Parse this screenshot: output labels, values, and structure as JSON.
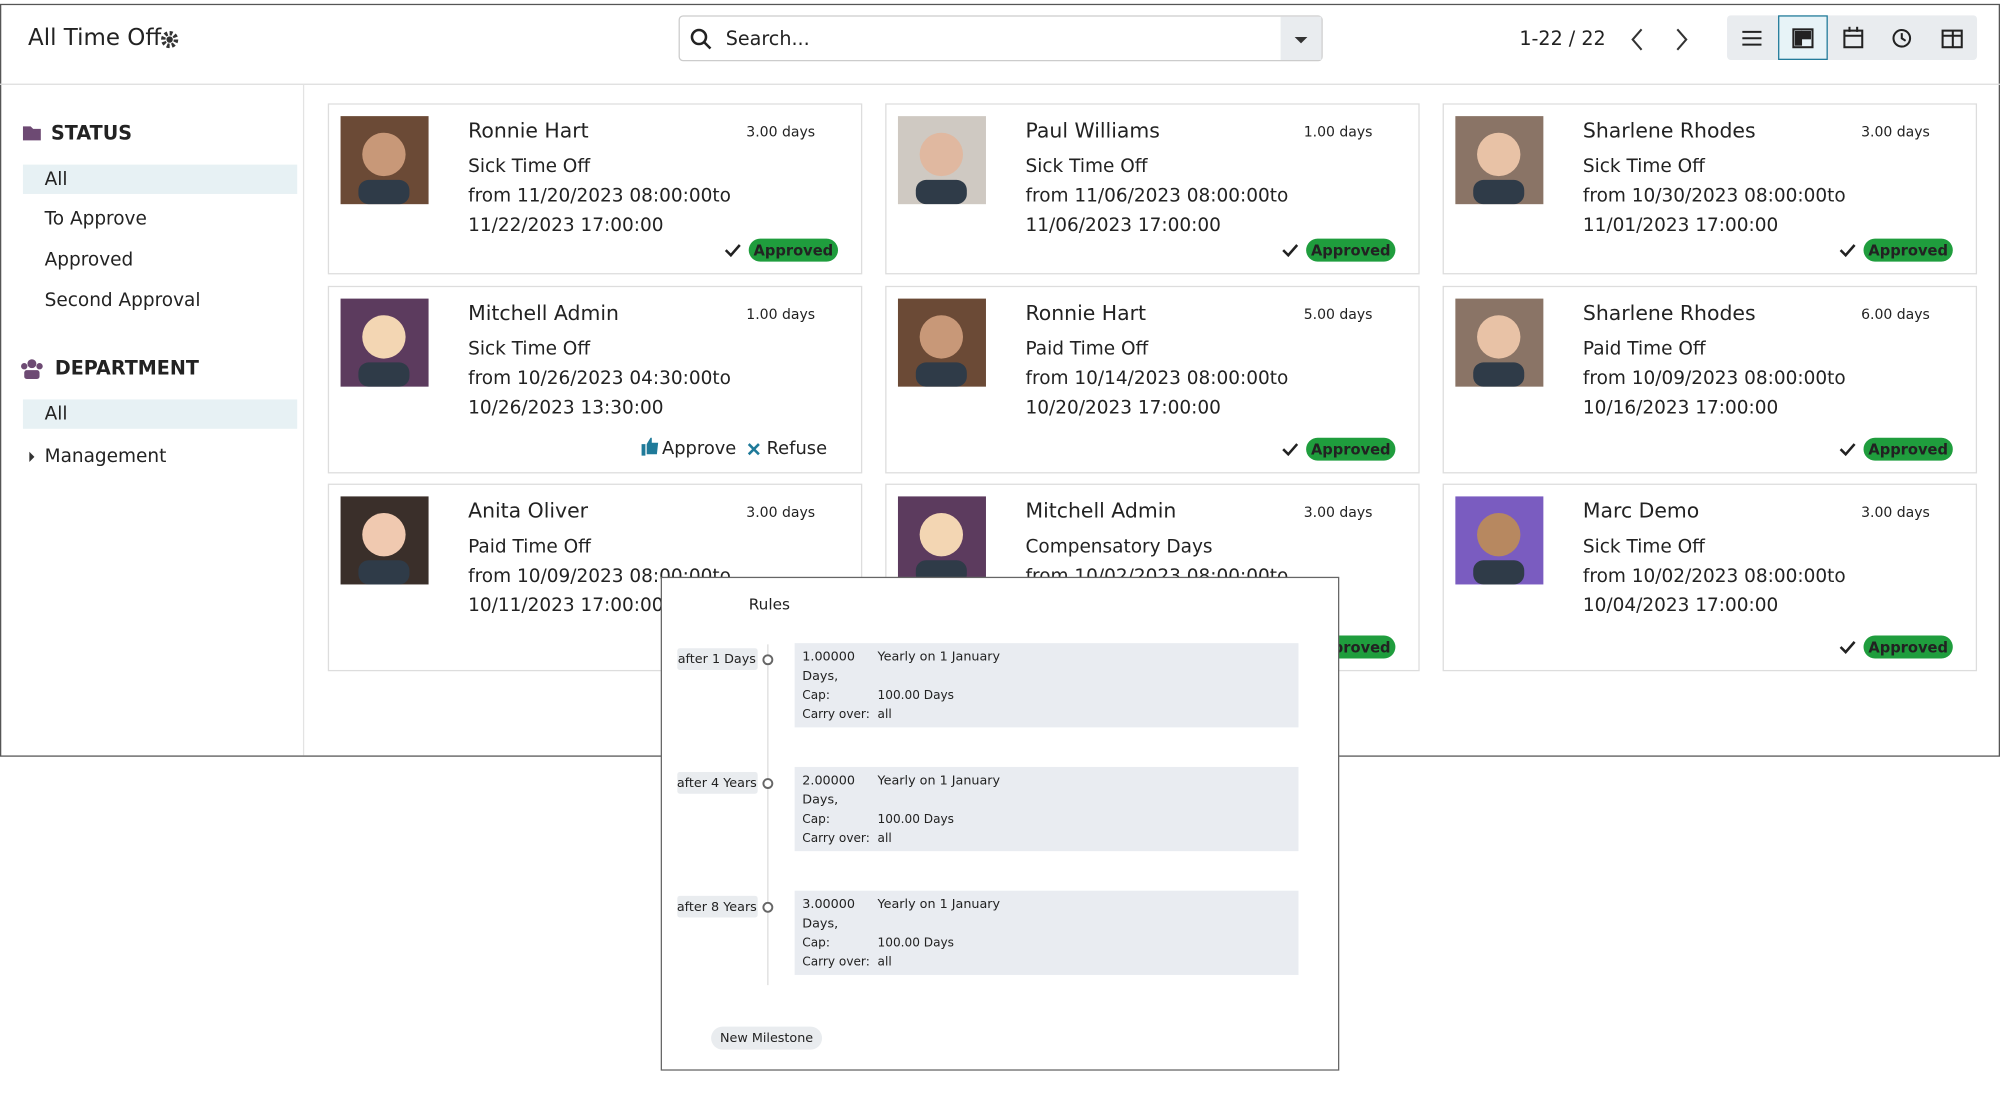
{
  "header": {
    "title": "All Time Off",
    "search_placeholder": "Search...",
    "pager": "1-22 / 22"
  },
  "sidebar": {
    "status_title": "STATUS",
    "status_items": [
      "All",
      "To Approve",
      "Approved",
      "Second Approval"
    ],
    "department_title": "DEPARTMENT",
    "department_items": [
      "All",
      "Management"
    ]
  },
  "cards": [
    {
      "name": "Ronnie Hart",
      "days": "3.00 days",
      "type": "Sick Time Off",
      "from": "from 11/20/2023 08:00:00to",
      "to": "11/22/2023 17:00:00",
      "status": "Approved"
    },
    {
      "name": "Paul Williams",
      "days": "1.00 days",
      "type": "Sick Time Off",
      "from": "from 11/06/2023 08:00:00to",
      "to": "11/06/2023 17:00:00",
      "status": "Approved"
    },
    {
      "name": "Sharlene Rhodes",
      "days": "3.00 days",
      "type": "Sick Time Off",
      "from": "from 10/30/2023 08:00:00to",
      "to": "11/01/2023 17:00:00",
      "status": "Approved"
    },
    {
      "name": "Mitchell Admin",
      "days": "1.00 days",
      "type": "Sick Time Off",
      "from": "from 10/26/2023 04:30:00to",
      "to": "10/26/2023 13:30:00",
      "actions": [
        "Approve",
        "Refuse"
      ]
    },
    {
      "name": "Ronnie Hart",
      "days": "5.00 days",
      "type": "Paid Time Off",
      "from": "from 10/14/2023 08:00:00to",
      "to": "10/20/2023 17:00:00",
      "status": "Approved"
    },
    {
      "name": "Sharlene Rhodes",
      "days": "6.00 days",
      "type": "Paid Time Off",
      "from": "from 10/09/2023 08:00:00to",
      "to": "10/16/2023 17:00:00",
      "status": "Approved"
    },
    {
      "name": "Anita Oliver",
      "days": "3.00 days",
      "type": "Paid Time Off",
      "from": "from 10/09/2023 08:00:00to",
      "to": "10/11/2023 17:00:00"
    },
    {
      "name": "Mitchell Admin",
      "days": "3.00 days",
      "type": "Compensatory Days",
      "from": "from 10/02/2023 08:00:00to",
      "status": "Approved"
    },
    {
      "name": "Marc Demo",
      "days": "3.00 days",
      "type": "Sick Time Off",
      "from": "from 10/02/2023 08:00:00to",
      "to": "10/04/2023 17:00:00",
      "status": "Approved"
    }
  ],
  "rules_popup": {
    "title": "Rules",
    "milestones": [
      {
        "label": "after 1 Days",
        "amount": "1.00000",
        "unit": "Days,",
        "frequency": "Yearly on 1 January",
        "cap_label": "Cap:",
        "cap": "100.00 Days",
        "carry_label": "Carry over:",
        "carry": "all"
      },
      {
        "label": "after 4 Years",
        "amount": "2.00000",
        "unit": "Days,",
        "frequency": "Yearly on 1 January",
        "cap_label": "Cap:",
        "cap": "100.00 Days",
        "carry_label": "Carry over:",
        "carry": "all"
      },
      {
        "label": "after 8 Years",
        "amount": "3.00000",
        "unit": "Days,",
        "frequency": "Yearly on 1 January",
        "cap_label": "Cap:",
        "cap": "100.00 Days",
        "carry_label": "Carry over:",
        "carry": "all"
      }
    ],
    "button": "New Milestone"
  }
}
